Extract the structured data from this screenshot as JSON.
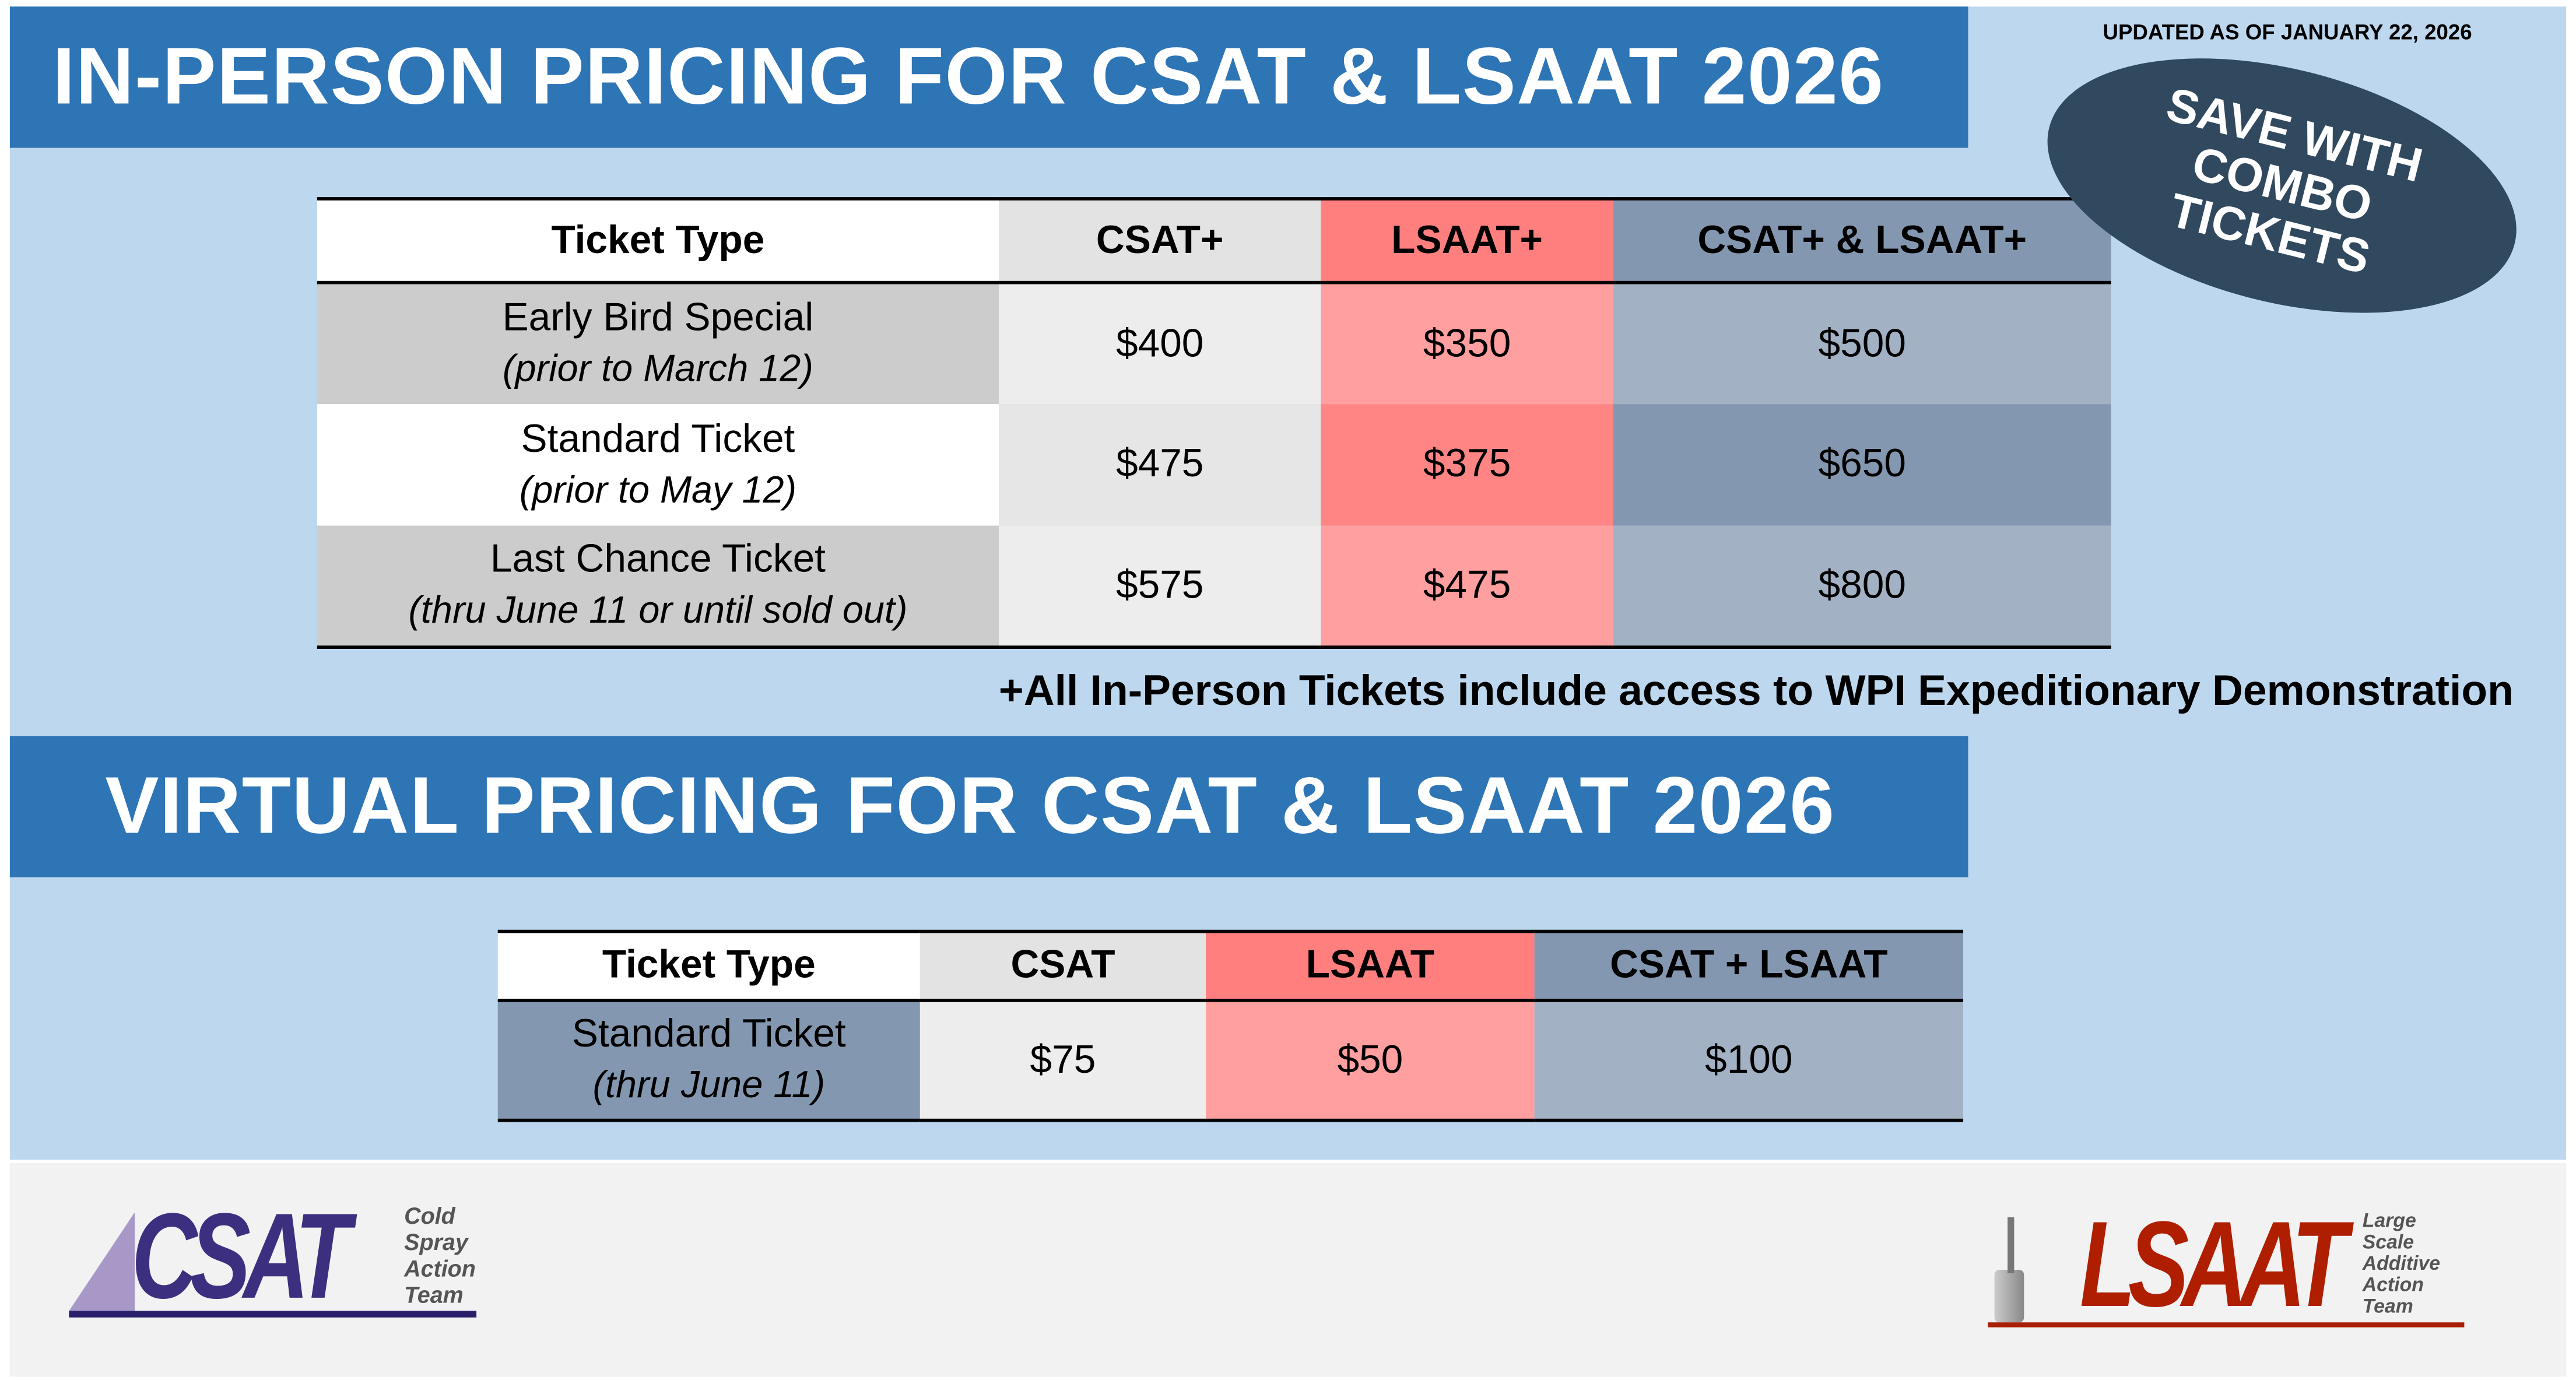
{
  "header": {
    "in_person_title": "IN-PERSON PRICING FOR CSAT & LSAAT 2026",
    "virtual_title": "VIRTUAL PRICING FOR CSAT & LSAAT 2026",
    "updated": "UPDATED AS OF JANUARY 22, 2026"
  },
  "badge": {
    "line1": "SAVE WITH",
    "line2": "COMBO",
    "line3": "TICKETS"
  },
  "in_person_table": {
    "headers": [
      "Ticket Type",
      "CSAT+",
      "LSAAT+",
      "CSAT+ & LSAAT+"
    ],
    "rows": [
      {
        "type": "Early Bird Special",
        "note": "(prior to March 12)",
        "csat": "$400",
        "lsaat": "$350",
        "combo": "$500"
      },
      {
        "type": "Standard Ticket",
        "note": "(prior to May 12)",
        "csat": "$475",
        "lsaat": "$375",
        "combo": "$650"
      },
      {
        "type": "Last Chance Ticket",
        "note": "(thru June 11 or until sold out)",
        "csat": "$575",
        "lsaat": "$475",
        "combo": "$800"
      }
    ]
  },
  "footnote": "+All In-Person Tickets include access to WPI Expeditionary Demonstration",
  "virtual_table": {
    "headers": [
      "Ticket Type",
      "CSAT",
      "LSAAT",
      "CSAT + LSAAT"
    ],
    "rows": [
      {
        "type": "Standard Ticket",
        "note": "(thru June 11)",
        "csat": "$75",
        "lsaat": "$50",
        "combo": "$100"
      }
    ]
  },
  "logos": {
    "csat": {
      "name": "CSAT",
      "sub": [
        "Cold",
        "Spray",
        "Action",
        "Team"
      ]
    },
    "lsaat": {
      "name": "LSAAT",
      "sub": [
        "Large",
        "Scale",
        "Additive",
        "Action",
        "Team"
      ]
    }
  },
  "colors": {
    "title_blue": "#2e75b6",
    "bg_blue": "#bdd7ee",
    "badge": "#31495f",
    "csat_purple": "#3d2f7f",
    "lsaat_red": "#b01e00"
  }
}
